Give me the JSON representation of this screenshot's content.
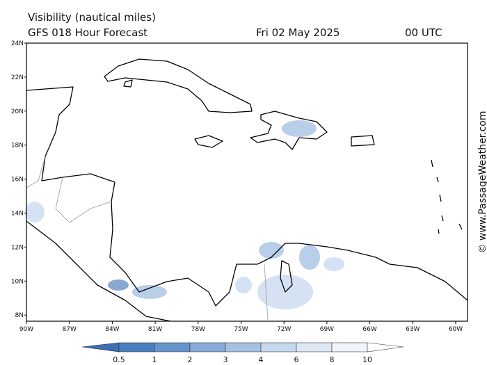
{
  "header": {
    "title": "Visibility (nautical miles)",
    "subtitle": "GFS 018 Hour Forecast",
    "date": "Fri 02 May 2025",
    "time": "00 UTC"
  },
  "axes": {
    "lat": [
      "24N",
      "22N",
      "20N",
      "18N",
      "16N",
      "14N",
      "12N",
      "10N",
      "8N"
    ],
    "lon": [
      "90W",
      "87W",
      "84W",
      "81W",
      "78W",
      "75W",
      "72W",
      "69W",
      "66W",
      "63W",
      "60W"
    ]
  },
  "legend": {
    "values": [
      0.5,
      1,
      2,
      3,
      4,
      6,
      8,
      10
    ]
  },
  "credit": "© www.PassageWeather.com"
}
